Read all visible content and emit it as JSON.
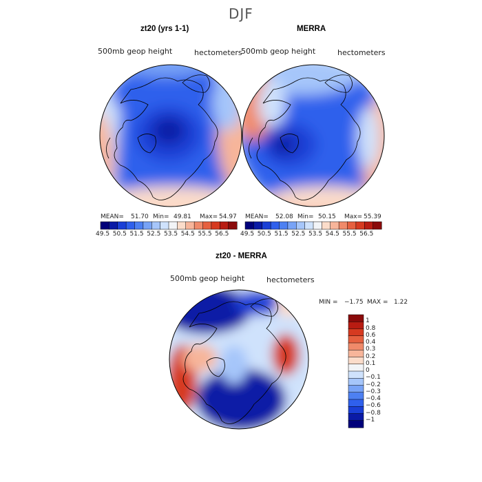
{
  "title": "DJF",
  "colors": {
    "scale": [
      "#00007a",
      "#0a1aa6",
      "#1a3fd6",
      "#2f60ec",
      "#4d80f2",
      "#78a3f6",
      "#a6c6fa",
      "#cfe2fc",
      "#f2f4f7",
      "#fbdcca",
      "#f7b59a",
      "#f08a6a",
      "#e6603f",
      "#d63a20",
      "#b81c12",
      "#8a0a0a"
    ]
  },
  "panels": [
    {
      "title": "zt20 (yrs 1-1)",
      "variable": "500mb geop height",
      "units": "hectometers",
      "mean_label": "MEAN=",
      "mean": "51.70",
      "min_label": "Min=",
      "min": "49.81",
      "max_label": "Max=",
      "max": "54.97",
      "colorbar_ticks": [
        "49.5",
        "50.5",
        "51.5",
        "52.5",
        "53.5",
        "54.5",
        "55.5",
        "56.5"
      ]
    },
    {
      "title": "MERRA",
      "variable": "500mb geop height",
      "units": "hectometers",
      "mean_label": "MEAN=",
      "mean": "52.08",
      "min_label": "Min=",
      "min": "50.15",
      "max_label": "Max=",
      "max": "55.39",
      "colorbar_ticks": [
        "49.5",
        "50.5",
        "51.5",
        "52.5",
        "53.5",
        "54.5",
        "55.5",
        "56.5"
      ]
    }
  ],
  "diff_panel": {
    "title": "zt20 - MERRA",
    "variable": "500mb geop height",
    "units": "hectometers",
    "min_label": "MIN =",
    "min": "−1.75",
    "max_label": "MAX =",
    "max": "1.22",
    "colorbar_ticks": [
      "1",
      "0.8",
      "0.6",
      "0.4",
      "0.3",
      "0.2",
      "0.1",
      "0",
      "−0.1",
      "−0.2",
      "−0.3",
      "−0.4",
      "−0.6",
      "−0.8",
      "−1"
    ]
  }
}
